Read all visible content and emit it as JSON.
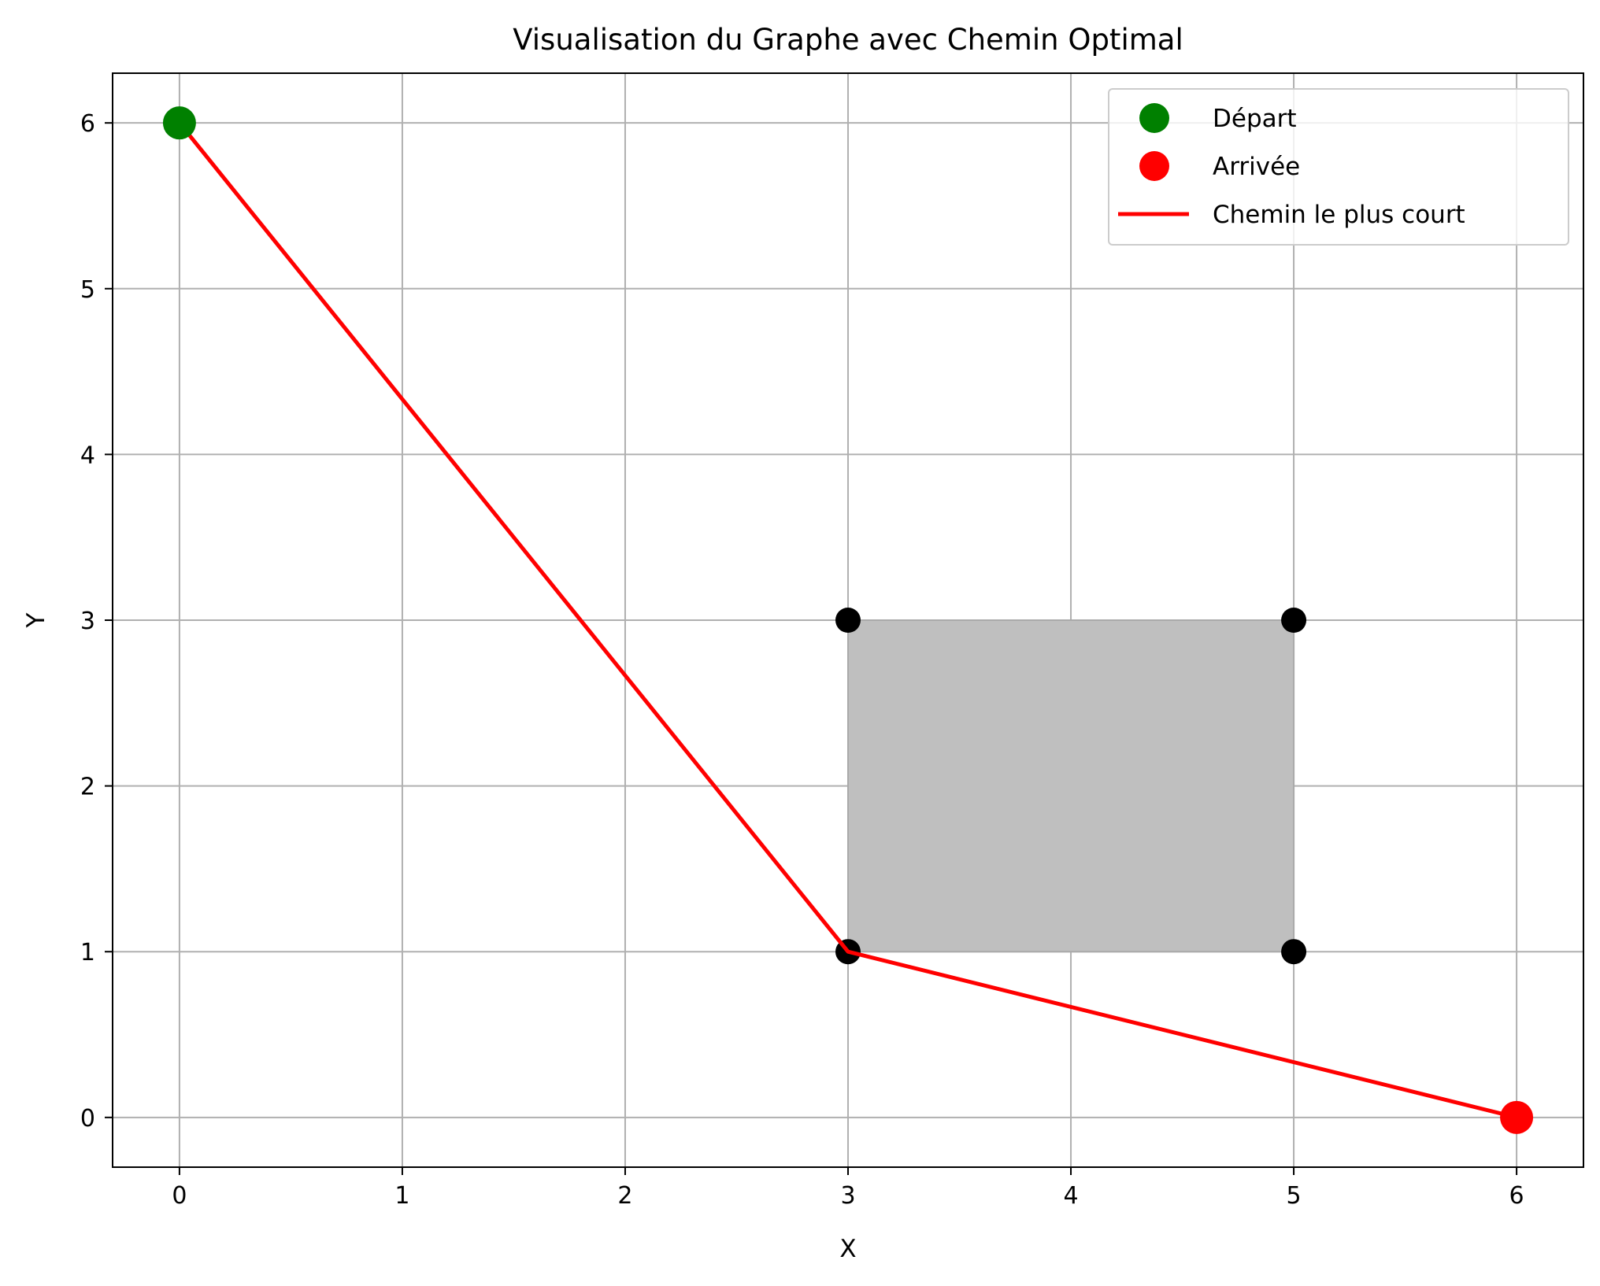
{
  "chart_data": {
    "type": "scatter",
    "title": "Visualisation du Graphe avec Chemin Optimal",
    "xlabel": "X",
    "ylabel": "Y",
    "xlim": [
      -0.3,
      6.3
    ],
    "ylim": [
      -0.3,
      6.3
    ],
    "xticks": [
      0,
      1,
      2,
      3,
      4,
      5,
      6
    ],
    "yticks": [
      0,
      1,
      2,
      3,
      4,
      5,
      6
    ],
    "grid": true,
    "legend_position": "top-right",
    "obstacle": {
      "x": [
        3,
        5
      ],
      "y": [
        1,
        3
      ],
      "color": "#bfbfbf"
    },
    "nodes": [
      {
        "x": 3,
        "y": 3
      },
      {
        "x": 5,
        "y": 3
      },
      {
        "x": 3,
        "y": 1
      },
      {
        "x": 5,
        "y": 1
      }
    ],
    "node_color": "#000000",
    "series": [
      {
        "name": "Départ",
        "kind": "point",
        "color": "#008000",
        "points": [
          {
            "x": 0,
            "y": 6
          }
        ]
      },
      {
        "name": "Arrivée",
        "kind": "point",
        "color": "#ff0000",
        "points": [
          {
            "x": 6,
            "y": 0
          }
        ]
      },
      {
        "name": "Chemin le plus court",
        "kind": "line",
        "color": "#ff0000",
        "points": [
          {
            "x": 0,
            "y": 6
          },
          {
            "x": 3,
            "y": 1
          },
          {
            "x": 6,
            "y": 0
          }
        ]
      }
    ]
  }
}
